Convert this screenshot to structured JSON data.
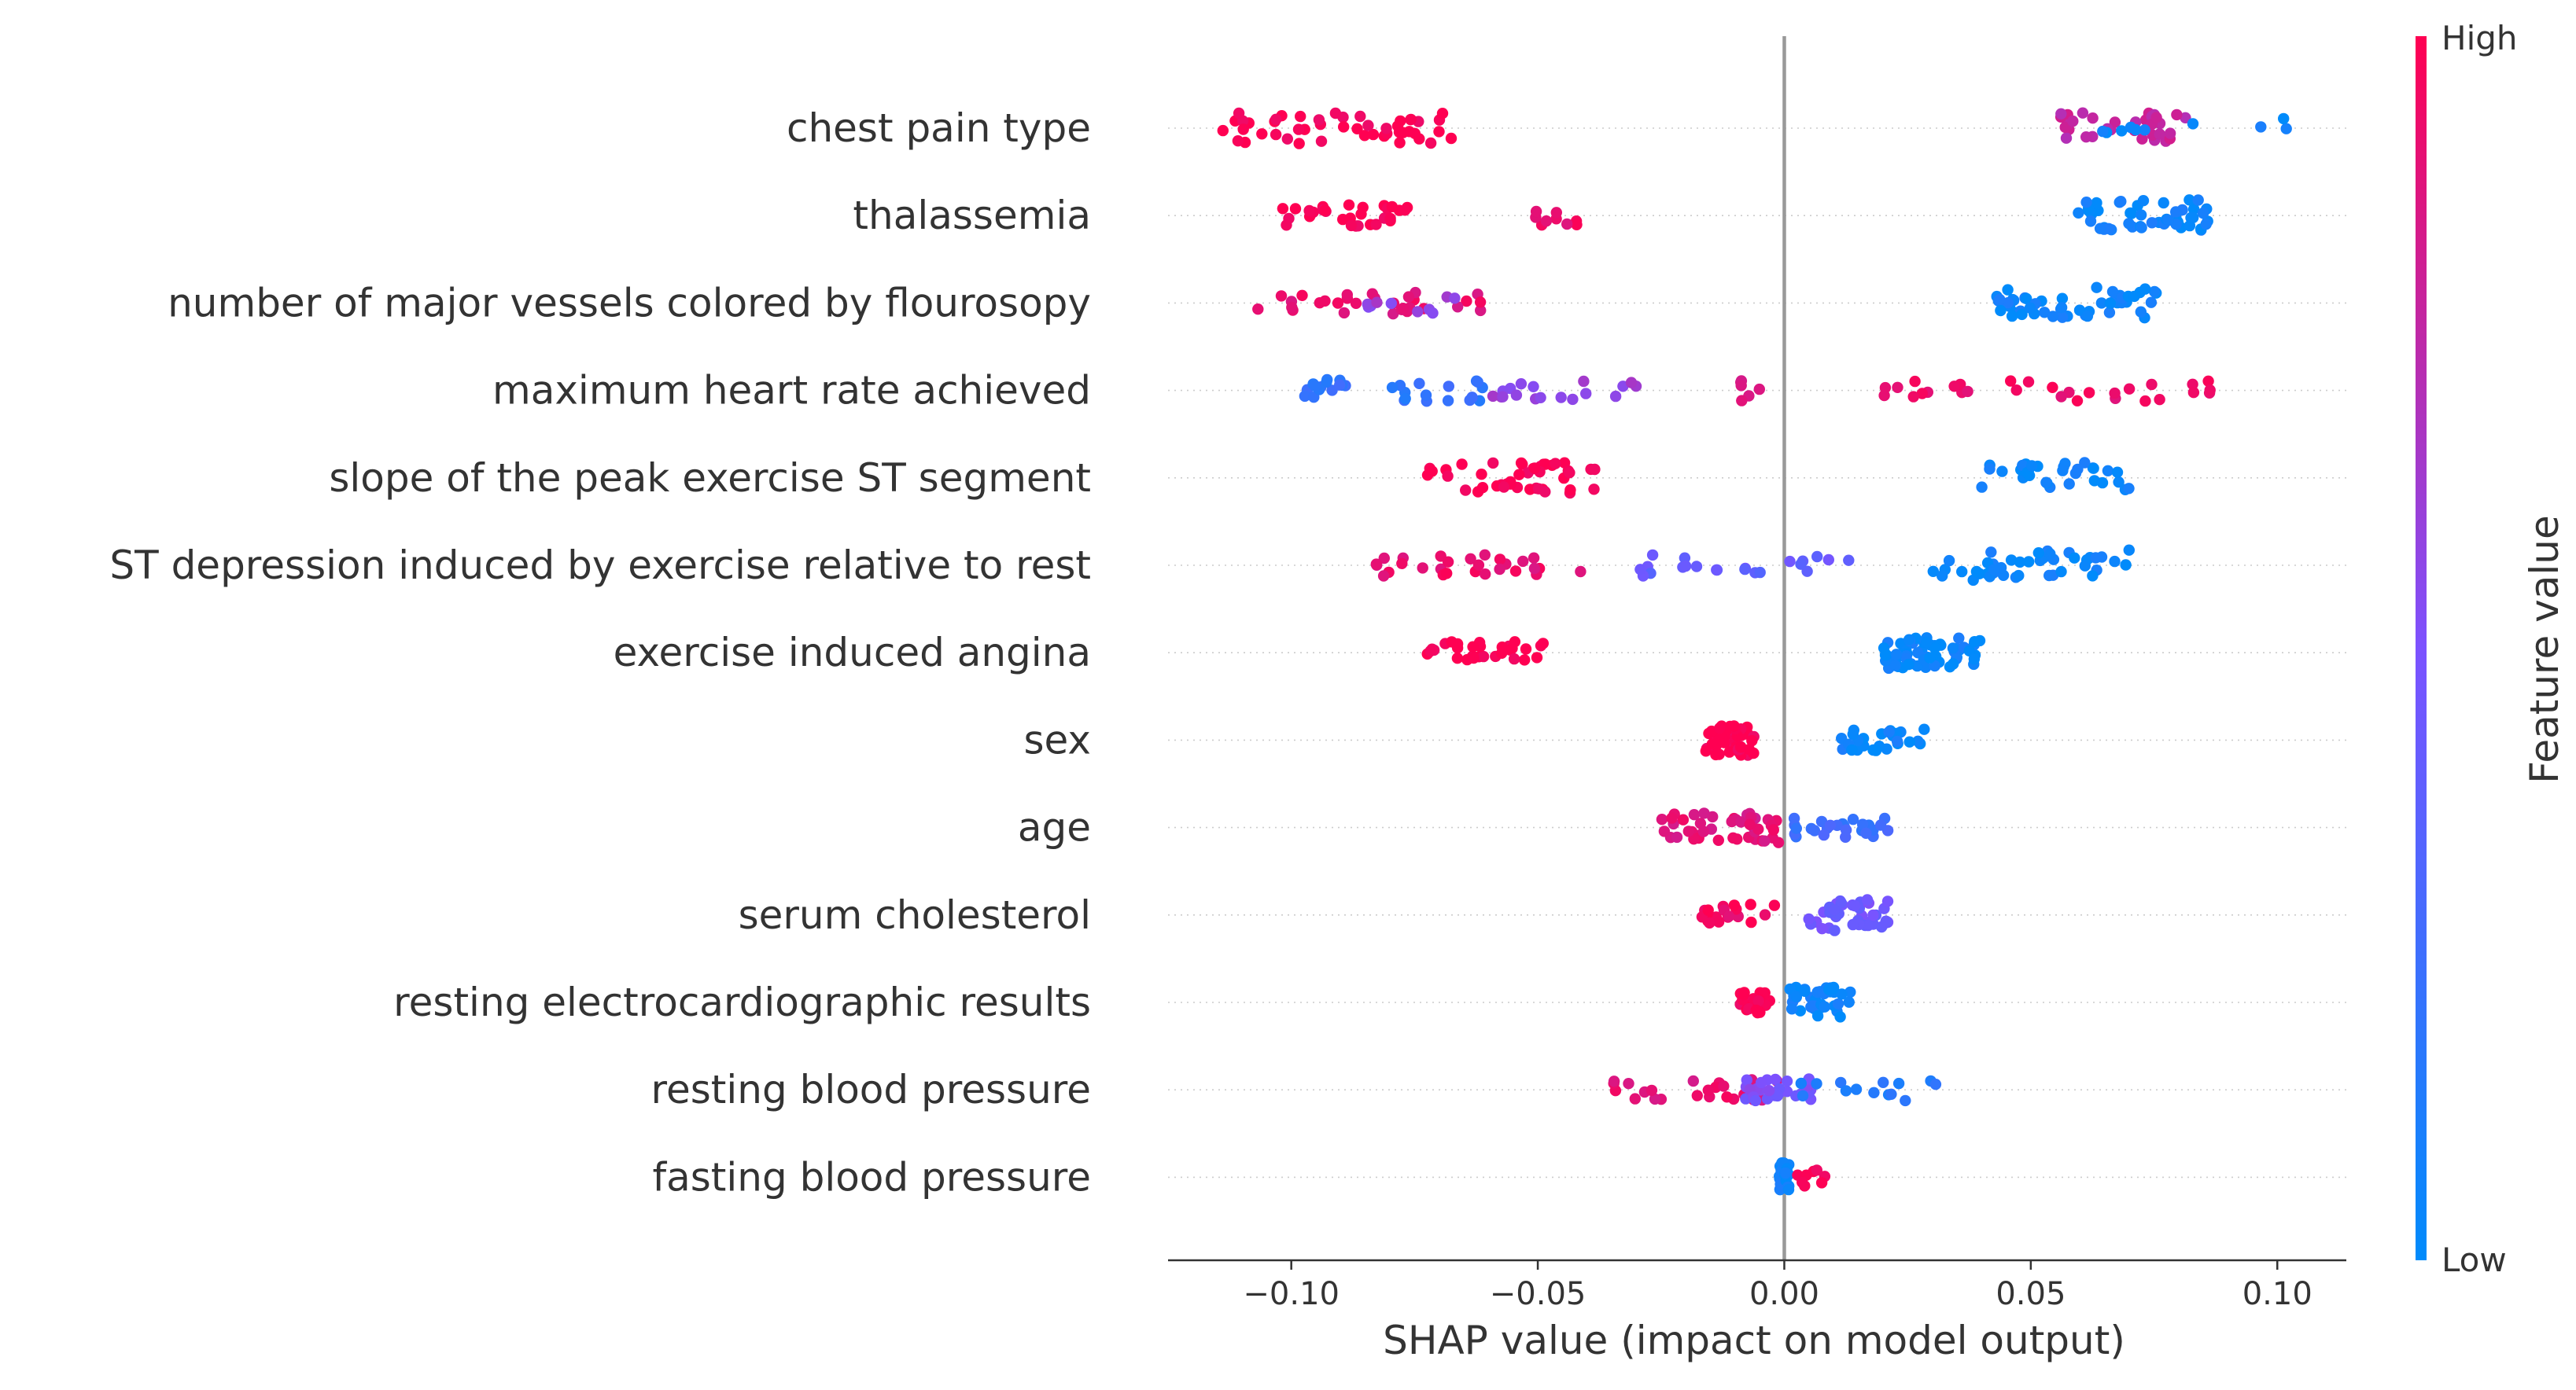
{
  "chart_data": {
    "type": "scatter",
    "subtype": "shap-beeswarm",
    "xlabel": "SHAP value (impact on model output)",
    "xlim": [
      -0.125,
      0.114
    ],
    "xticks": [
      -0.1,
      -0.05,
      0.0,
      0.05,
      0.1
    ],
    "xtick_labels": [
      "−0.10",
      "−0.05",
      "0.00",
      "0.05",
      "0.10"
    ],
    "grid": false,
    "features": [
      {
        "name": "chest pain type",
        "clusters": [
          {
            "lo": -0.114,
            "hi": -0.067,
            "n": 48,
            "fv": 1.0
          },
          {
            "lo": 0.056,
            "hi": 0.083,
            "n": 34,
            "fv": 0.78
          },
          {
            "lo": 0.06,
            "hi": 0.103,
            "n": 10,
            "fv": 0.05
          }
        ]
      },
      {
        "name": "thalassemia",
        "clusters": [
          {
            "lo": -0.105,
            "hi": -0.076,
            "n": 30,
            "fv": 1.0
          },
          {
            "lo": -0.051,
            "hi": -0.037,
            "n": 9,
            "fv": 0.92
          },
          {
            "lo": 0.056,
            "hi": 0.087,
            "n": 48,
            "fv": 0.05
          }
        ]
      },
      {
        "name": "number of major vessels colored by flourosopy",
        "clusters": [
          {
            "lo": -0.107,
            "hi": -0.057,
            "n": 30,
            "fv": 0.9
          },
          {
            "lo": -0.085,
            "hi": -0.065,
            "n": 10,
            "fv": 0.6
          },
          {
            "lo": 0.043,
            "hi": 0.076,
            "n": 52,
            "fv": 0.05
          }
        ]
      },
      {
        "name": "maximum heart rate achieved",
        "clusters": [
          {
            "lo": -0.098,
            "hi": -0.06,
            "n": 30,
            "fv": 0.2
          },
          {
            "lo": -0.06,
            "hi": -0.03,
            "n": 18,
            "fv": 0.6
          },
          {
            "lo": -0.009,
            "hi": -0.004,
            "n": 6,
            "fv": 0.85
          },
          {
            "lo": 0.017,
            "hi": 0.087,
            "n": 30,
            "fv": 0.95
          }
        ]
      },
      {
        "name": "slope of the peak exercise ST segment",
        "clusters": [
          {
            "lo": -0.073,
            "hi": -0.037,
            "n": 44,
            "fv": 1.0
          },
          {
            "lo": 0.04,
            "hi": 0.07,
            "n": 32,
            "fv": 0.05
          }
        ]
      },
      {
        "name": "ST depression induced by exercise relative to rest",
        "clusters": [
          {
            "lo": -0.083,
            "hi": -0.04,
            "n": 28,
            "fv": 0.92
          },
          {
            "lo": -0.03,
            "hi": 0.015,
            "n": 22,
            "fv": 0.4
          },
          {
            "lo": 0.03,
            "hi": 0.07,
            "n": 44,
            "fv": 0.05
          }
        ]
      },
      {
        "name": "exercise induced angina",
        "clusters": [
          {
            "lo": -0.073,
            "hi": -0.048,
            "n": 30,
            "fv": 1.0
          },
          {
            "lo": 0.02,
            "hi": 0.04,
            "n": 64,
            "fv": 0.05
          }
        ]
      },
      {
        "name": "sex",
        "clusters": [
          {
            "lo": -0.016,
            "hi": -0.006,
            "n": 48,
            "fv": 1.0
          },
          {
            "lo": 0.011,
            "hi": 0.031,
            "n": 26,
            "fv": 0.05
          }
        ]
      },
      {
        "name": "age",
        "clusters": [
          {
            "lo": -0.025,
            "hi": -0.001,
            "n": 44,
            "fv": 0.88
          },
          {
            "lo": 0.002,
            "hi": 0.023,
            "n": 26,
            "fv": 0.25
          }
        ]
      },
      {
        "name": "serum cholesterol",
        "clusters": [
          {
            "lo": -0.019,
            "hi": -0.001,
            "n": 20,
            "fv": 0.96
          },
          {
            "lo": 0.004,
            "hi": 0.021,
            "n": 42,
            "fv": 0.45
          }
        ]
      },
      {
        "name": "resting electrocardiographic results",
        "clusters": [
          {
            "lo": -0.009,
            "hi": -0.002,
            "n": 24,
            "fv": 1.0
          },
          {
            "lo": 0.001,
            "hi": 0.014,
            "n": 42,
            "fv": 0.05
          }
        ]
      },
      {
        "name": "resting blood pressure",
        "clusters": [
          {
            "lo": -0.035,
            "hi": -0.001,
            "n": 24,
            "fv": 0.9
          },
          {
            "lo": -0.008,
            "hi": 0.006,
            "n": 30,
            "fv": 0.5
          },
          {
            "lo": 0.003,
            "hi": 0.034,
            "n": 14,
            "fv": 0.15
          }
        ]
      },
      {
        "name": "fasting blood pressure",
        "clusters": [
          {
            "lo": -0.001,
            "hi": 0.001,
            "n": 40,
            "fv": 0.05
          },
          {
            "lo": 0.001,
            "hi": 0.009,
            "n": 8,
            "fv": 1.0
          }
        ]
      }
    ],
    "colorbar": {
      "label": "Feature value",
      "high_label": "High",
      "low_label": "Low",
      "high_color": "#ff0052",
      "low_color": "#008bfb"
    },
    "colors": {
      "zero_line": "#999999",
      "axis": "#333333",
      "row_dots": "#cccccc"
    }
  }
}
